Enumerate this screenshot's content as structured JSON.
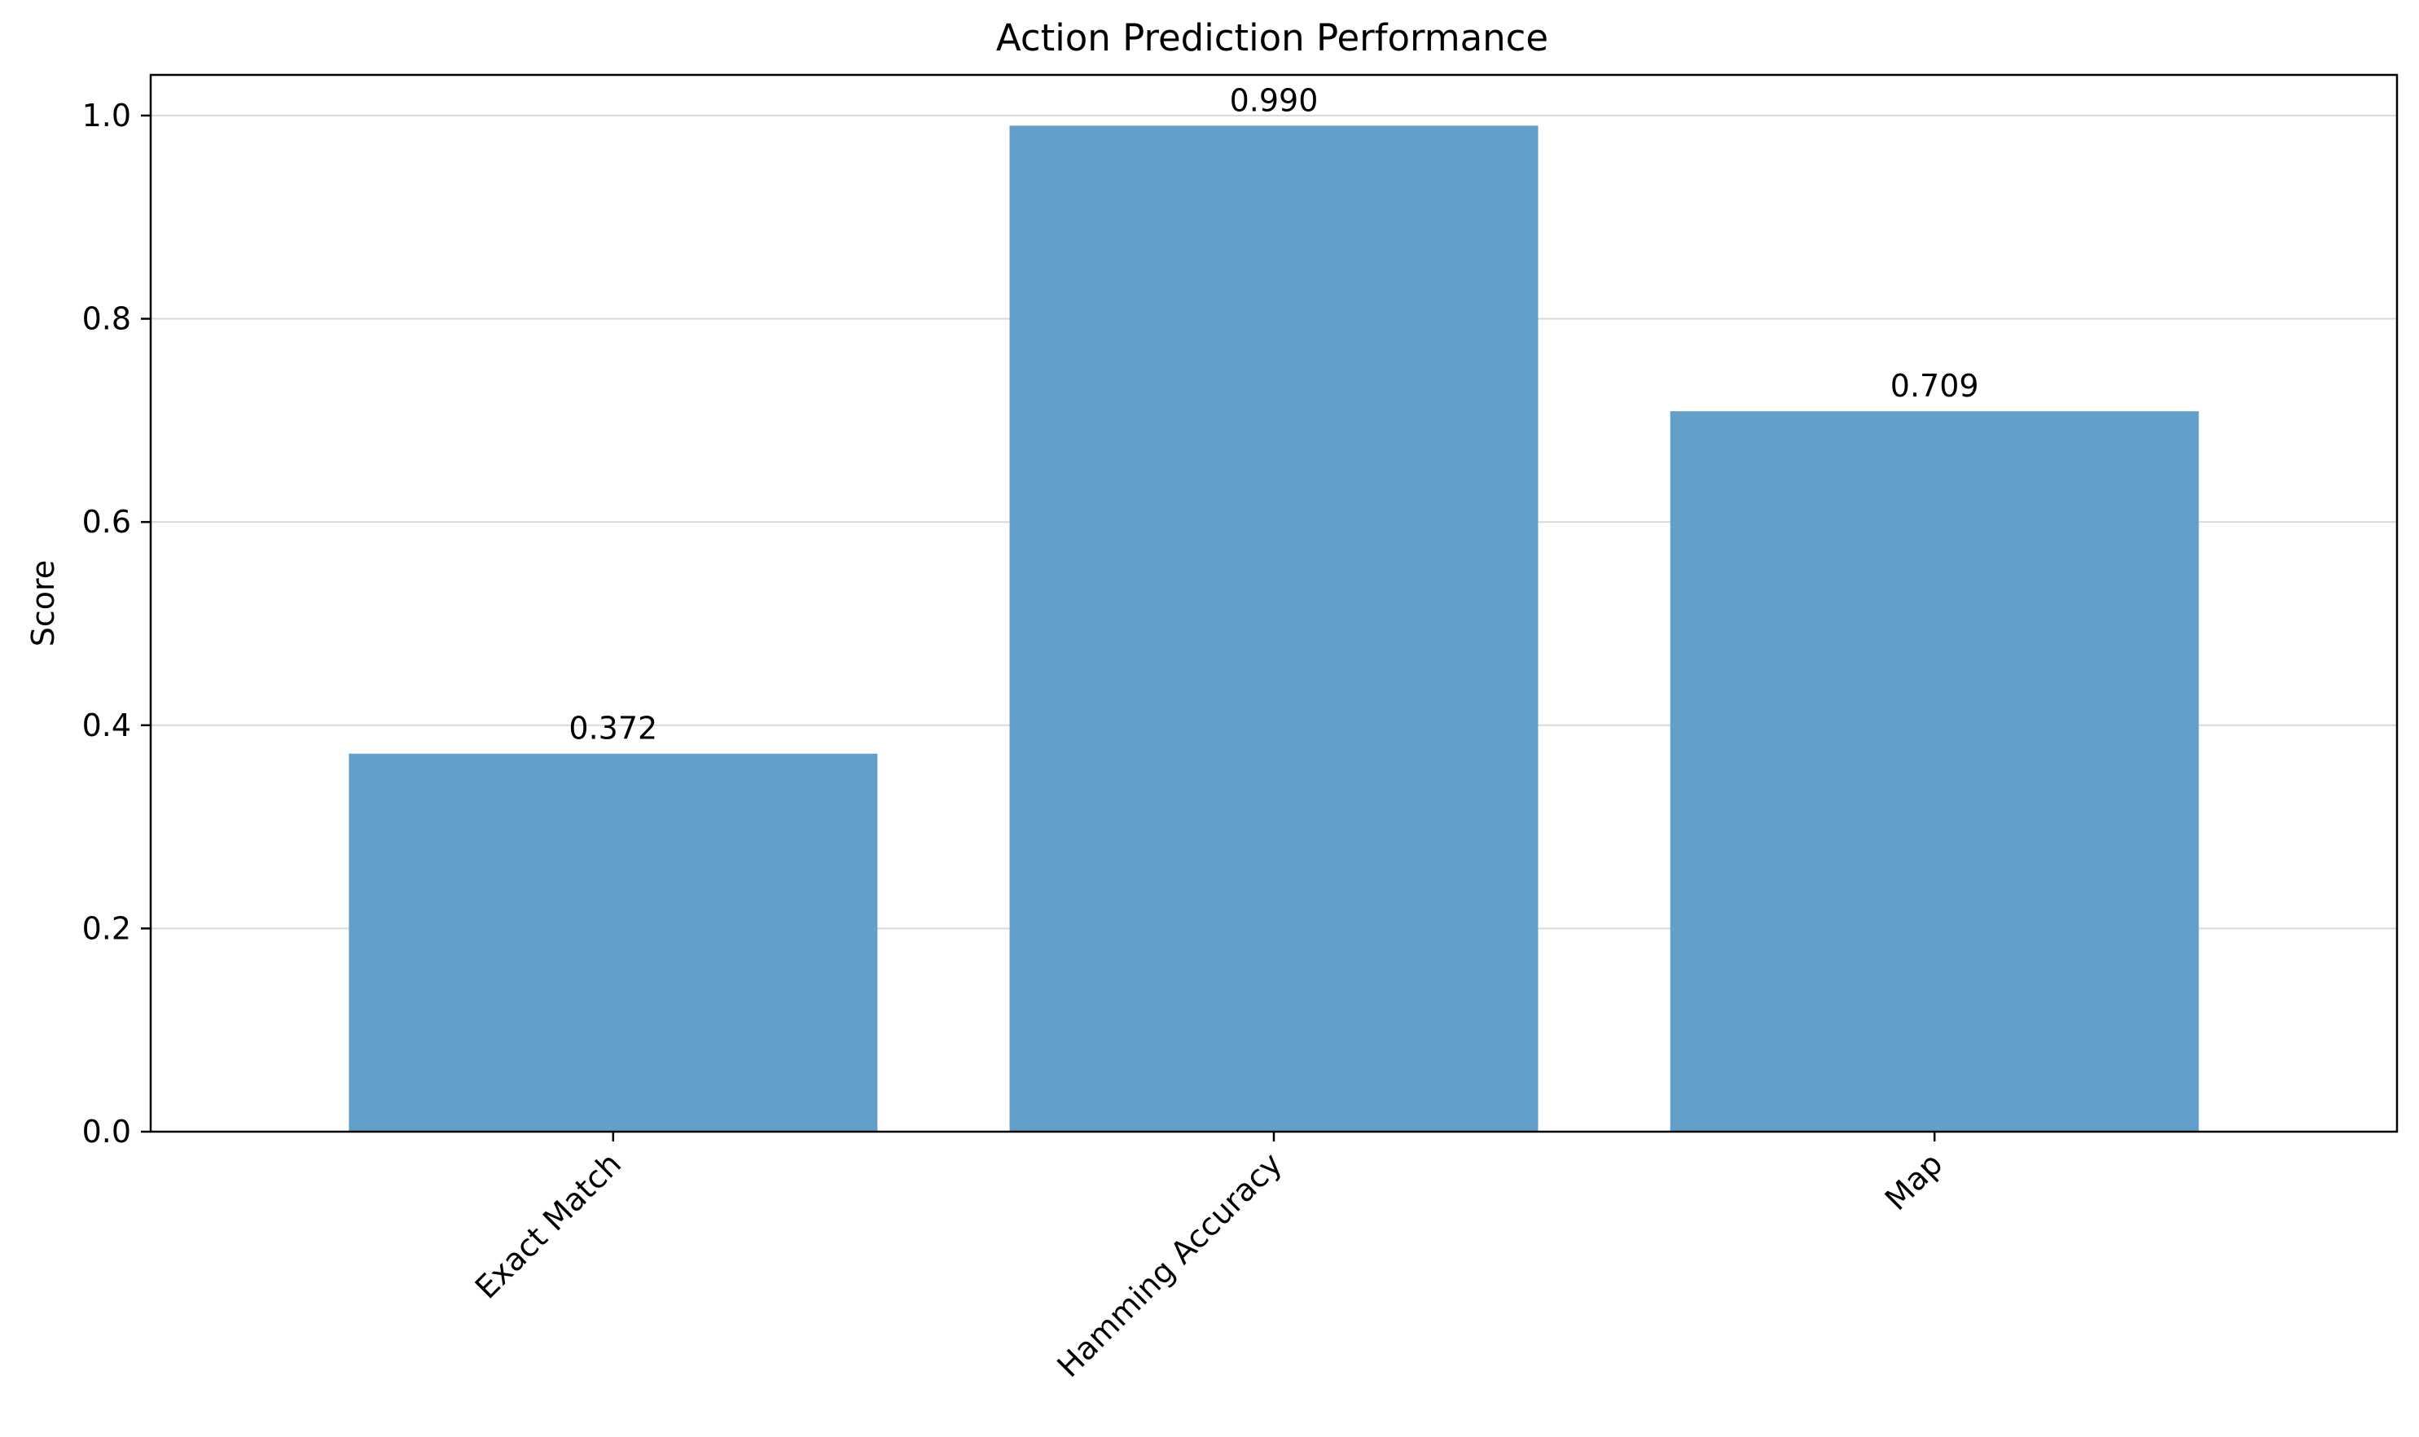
{
  "chart_data": {
    "type": "bar",
    "title": "Action Prediction Performance",
    "xlabel": "",
    "ylabel": "Score",
    "categories": [
      "Exact Match",
      "Hamming Accuracy",
      "Map"
    ],
    "values": [
      0.372,
      0.99,
      0.709
    ],
    "value_labels": [
      "0.372",
      "0.990",
      "0.709"
    ],
    "ylim": [
      0,
      1.04
    ],
    "yticks": [
      0.0,
      0.2,
      0.4,
      0.6,
      0.8,
      1.0
    ],
    "ytick_labels": [
      "0.0",
      "0.2",
      "0.4",
      "0.6",
      "0.8",
      "1.0"
    ],
    "grid": "y-only",
    "bar_color": "#62a0ca",
    "grid_color": "#d9d9d9",
    "x_tick_rotation": 45
  }
}
